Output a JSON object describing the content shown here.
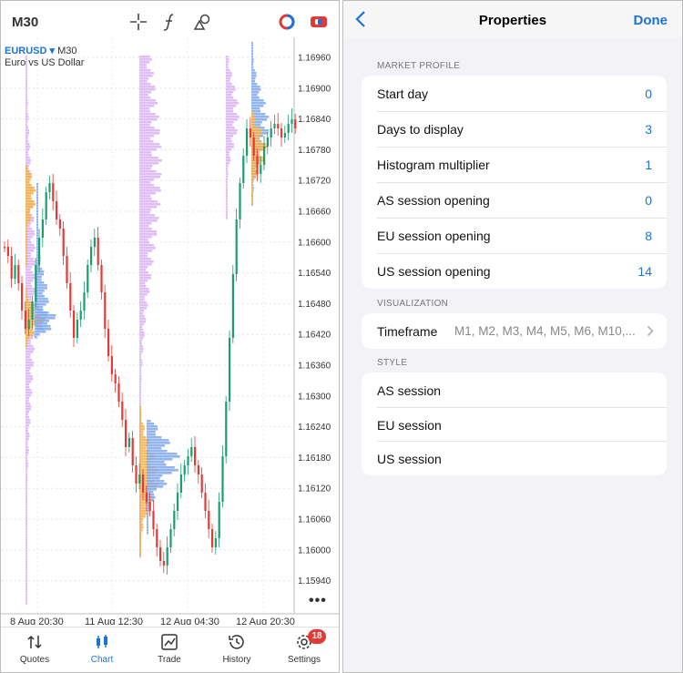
{
  "left": {
    "timeframe": "M30",
    "symbol": "EURUSD",
    "symbol_arrow": "▾",
    "symbol_tf": "M30",
    "description": "Euro vs US Dollar",
    "header_icons": [
      "crosshair-icon",
      "function-icon",
      "objects-icon",
      "ring-icon",
      "link-icon"
    ],
    "price_labels": [
      "1.16960",
      "1.16900",
      "1.16840",
      "1.16780",
      "1.16720",
      "1.16660",
      "1.16600",
      "1.16540",
      "1.16480",
      "1.16420",
      "1.16360",
      "1.16300",
      "1.16240",
      "1.16180",
      "1.16120",
      "1.16060",
      "1.16000",
      "1.15940"
    ],
    "date_labels": [
      "8 Aug 20:30",
      "11 Aug 12:30",
      "12 Aug 04:30",
      "12 Aug 20:30"
    ],
    "more": "•••",
    "tabs": [
      {
        "label": "Quotes",
        "icon": "quotes-icon"
      },
      {
        "label": "Chart",
        "icon": "chart-icon"
      },
      {
        "label": "Trade",
        "icon": "trade-icon"
      },
      {
        "label": "History",
        "icon": "history-icon"
      },
      {
        "label": "Settings",
        "icon": "settings-icon",
        "badge": "18"
      }
    ],
    "colors": {
      "bull": "#1a9e6e",
      "bear": "#e53935",
      "profile_purple": "#d9b3f5",
      "profile_orange": "#f5b041",
      "profile_blue": "#7fa8f0",
      "accent": "#1a73d9"
    }
  },
  "right": {
    "title": "Properties",
    "done": "Done",
    "sections": {
      "market_profile": "MARKET PROFILE",
      "visualization": "VISUALIZATION",
      "style": "STYLE"
    },
    "market_profile": [
      {
        "label": "Start day",
        "value": "0"
      },
      {
        "label": "Days to display",
        "value": "3"
      },
      {
        "label": "Histogram multiplier",
        "value": "1"
      },
      {
        "label": "AS session opening",
        "value": "0"
      },
      {
        "label": "EU session opening",
        "value": "8"
      },
      {
        "label": "US session opening",
        "value": "14"
      }
    ],
    "visualization": {
      "label": "Timeframe",
      "value": "M1, M2, M3, M4, M5, M6, M10,..."
    },
    "style": [
      {
        "label": "AS session"
      },
      {
        "label": "EU session"
      },
      {
        "label": "US session"
      }
    ]
  }
}
